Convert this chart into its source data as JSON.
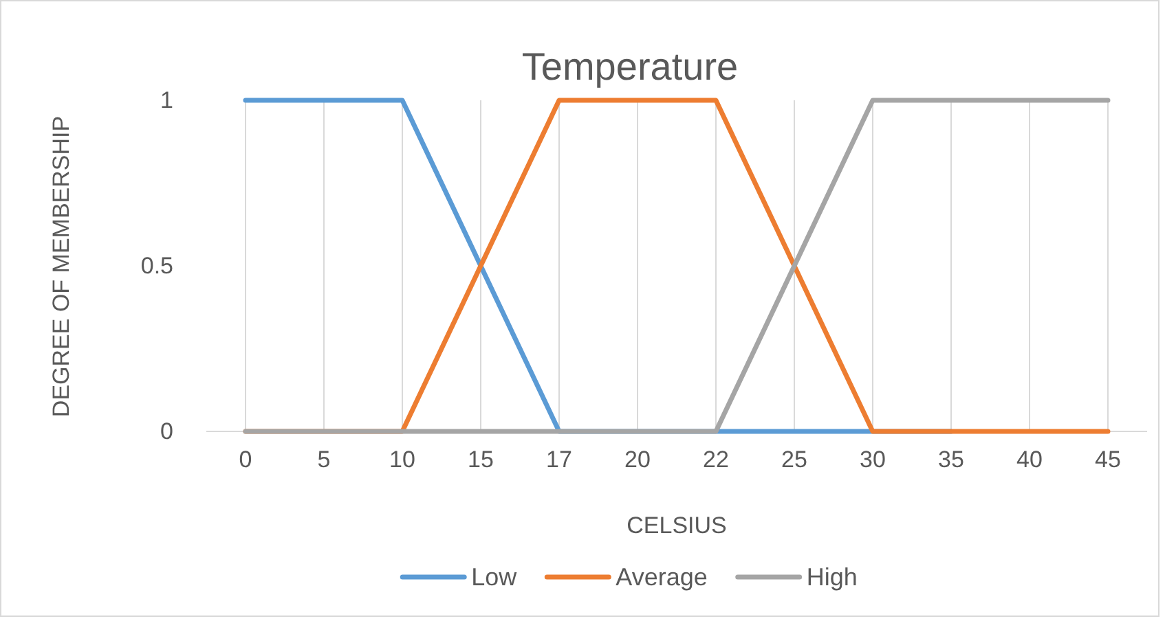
{
  "chart_data": {
    "type": "line",
    "title": "Temperature",
    "xlabel": "CELSIUS",
    "ylabel": "DEGREE OF MEMBERSHIP",
    "categories": [
      "0",
      "5",
      "10",
      "15",
      "17",
      "20",
      "22",
      "25",
      "30",
      "35",
      "40",
      "45"
    ],
    "series": [
      {
        "name": "Low",
        "color": "#5b9bd5",
        "values": [
          1,
          1,
          1,
          0.5,
          0,
          0,
          0,
          0,
          0,
          0,
          null,
          null
        ]
      },
      {
        "name": "Average",
        "color": "#ed7d31",
        "values": [
          0,
          0,
          0,
          0.5,
          1,
          1,
          1,
          0.5,
          0,
          0,
          0,
          0
        ]
      },
      {
        "name": "High",
        "color": "#a5a5a5",
        "values": [
          0,
          0,
          0,
          0,
          0,
          0,
          0,
          0.5,
          1,
          1,
          1,
          1
        ]
      }
    ],
    "ylim": [
      0,
      1
    ],
    "yticks": [
      0,
      0.5,
      1
    ],
    "grid": "x",
    "legend": "bottom",
    "marker": "none",
    "line_style": "solid"
  }
}
